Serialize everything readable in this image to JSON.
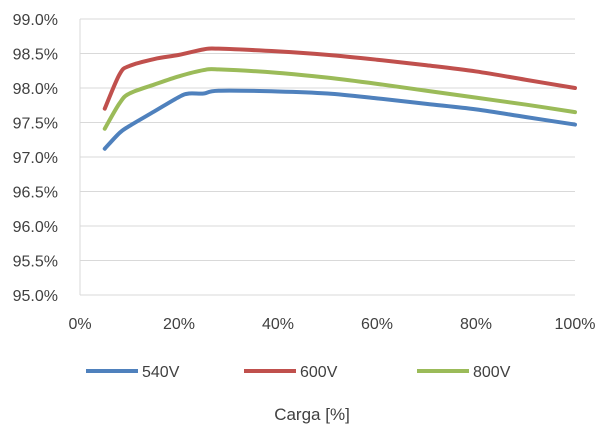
{
  "chart_data": {
    "type": "line",
    "title": "",
    "xlabel": "Carga [%]",
    "ylabel": "",
    "xlim": [
      0,
      100
    ],
    "ylim": [
      95.0,
      99.0
    ],
    "x_ticks": [
      0,
      20,
      40,
      60,
      80,
      100
    ],
    "x_tick_labels": [
      "0%",
      "20%",
      "40%",
      "60%",
      "80%",
      "100%"
    ],
    "y_ticks": [
      95.0,
      95.5,
      96.0,
      96.5,
      97.0,
      97.5,
      98.0,
      98.5,
      99.0
    ],
    "y_tick_labels": [
      "95.0%",
      "95.5%",
      "96.0%",
      "96.5%",
      "97.0%",
      "97.5%",
      "98.0%",
      "98.5%",
      "99.0%"
    ],
    "grid": "horizontal",
    "legend_position": "bottom",
    "series": [
      {
        "name": "540V",
        "color": "#4F81BD",
        "points": [
          [
            5,
            97.12
          ],
          [
            8,
            97.35
          ],
          [
            10,
            97.45
          ],
          [
            15,
            97.66
          ],
          [
            20,
            97.87
          ],
          [
            22,
            97.92
          ],
          [
            25,
            97.92
          ],
          [
            28,
            97.96
          ],
          [
            40,
            97.95
          ],
          [
            50,
            97.92
          ],
          [
            60,
            97.85
          ],
          [
            70,
            97.77
          ],
          [
            80,
            97.69
          ],
          [
            90,
            97.58
          ],
          [
            100,
            97.47
          ]
        ]
      },
      {
        "name": "600V",
        "color": "#C0504D",
        "points": [
          [
            5,
            97.7
          ],
          [
            8,
            98.2
          ],
          [
            10,
            98.32
          ],
          [
            15,
            98.42
          ],
          [
            20,
            98.48
          ],
          [
            25,
            98.56
          ],
          [
            28,
            98.57
          ],
          [
            40,
            98.53
          ],
          [
            50,
            98.48
          ],
          [
            60,
            98.41
          ],
          [
            70,
            98.33
          ],
          [
            80,
            98.24
          ],
          [
            90,
            98.12
          ],
          [
            100,
            98.0
          ]
        ]
      },
      {
        "name": "800V",
        "color": "#9BBB59",
        "points": [
          [
            5,
            97.41
          ],
          [
            8,
            97.78
          ],
          [
            10,
            97.92
          ],
          [
            15,
            98.05
          ],
          [
            20,
            98.17
          ],
          [
            25,
            98.26
          ],
          [
            28,
            98.27
          ],
          [
            40,
            98.22
          ],
          [
            50,
            98.15
          ],
          [
            60,
            98.06
          ],
          [
            70,
            97.96
          ],
          [
            80,
            97.86
          ],
          [
            90,
            97.76
          ],
          [
            100,
            97.65
          ]
        ]
      }
    ]
  }
}
